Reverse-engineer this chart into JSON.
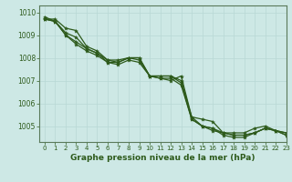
{
  "title": "Graphe pression niveau de la mer (hPa)",
  "background_color": "#cde8e5",
  "grid_color": "#b8d8d5",
  "line_color": "#2d5a1b",
  "spine_color": "#5a7a5a",
  "xlim": [
    -0.5,
    23
  ],
  "ylim": [
    1004.3,
    1010.3
  ],
  "yticks": [
    1005,
    1006,
    1007,
    1008,
    1009,
    1010
  ],
  "xticks": [
    0,
    1,
    2,
    3,
    4,
    5,
    6,
    7,
    8,
    9,
    10,
    11,
    12,
    13,
    14,
    15,
    16,
    17,
    18,
    19,
    20,
    21,
    22,
    23
  ],
  "series": [
    [
      1009.7,
      1009.7,
      1009.3,
      1009.2,
      1008.5,
      1008.3,
      1007.9,
      1007.9,
      1008.0,
      1008.0,
      1007.2,
      1007.2,
      1007.2,
      1006.9,
      1005.3,
      1005.0,
      1004.9,
      1004.7,
      1004.7,
      1004.7,
      1004.9,
      1005.0,
      1004.8,
      1004.7
    ],
    [
      1009.7,
      1009.6,
      1009.1,
      1008.9,
      1008.4,
      1008.2,
      1007.8,
      1007.8,
      1008.0,
      1008.0,
      1007.2,
      1007.2,
      1007.2,
      1007.0,
      1005.4,
      1005.3,
      1005.2,
      1004.7,
      1004.6,
      1004.6,
      1004.7,
      1004.9,
      1004.8,
      1004.7
    ],
    [
      1009.7,
      1009.6,
      1009.0,
      1008.7,
      1008.4,
      1008.2,
      1007.9,
      1007.8,
      1008.0,
      1007.9,
      1007.2,
      1007.1,
      1007.1,
      1006.8,
      1005.3,
      1005.0,
      1004.8,
      1004.7,
      1004.6,
      1004.6,
      1004.7,
      1004.9,
      1004.8,
      1004.6
    ],
    [
      1009.8,
      1009.6,
      1009.0,
      1008.6,
      1008.3,
      1008.1,
      1007.8,
      1007.7,
      1007.9,
      1007.8,
      1007.2,
      1007.1,
      1007.0,
      1007.2,
      1005.4,
      1005.0,
      1004.9,
      1004.6,
      1004.5,
      1004.5,
      1004.7,
      1004.9,
      1004.8,
      1004.6
    ]
  ],
  "xlabel_fontsize": 6.5,
  "ytick_fontsize": 5.5,
  "xtick_fontsize": 5.0,
  "linewidth": 0.9,
  "markersize": 3.0
}
